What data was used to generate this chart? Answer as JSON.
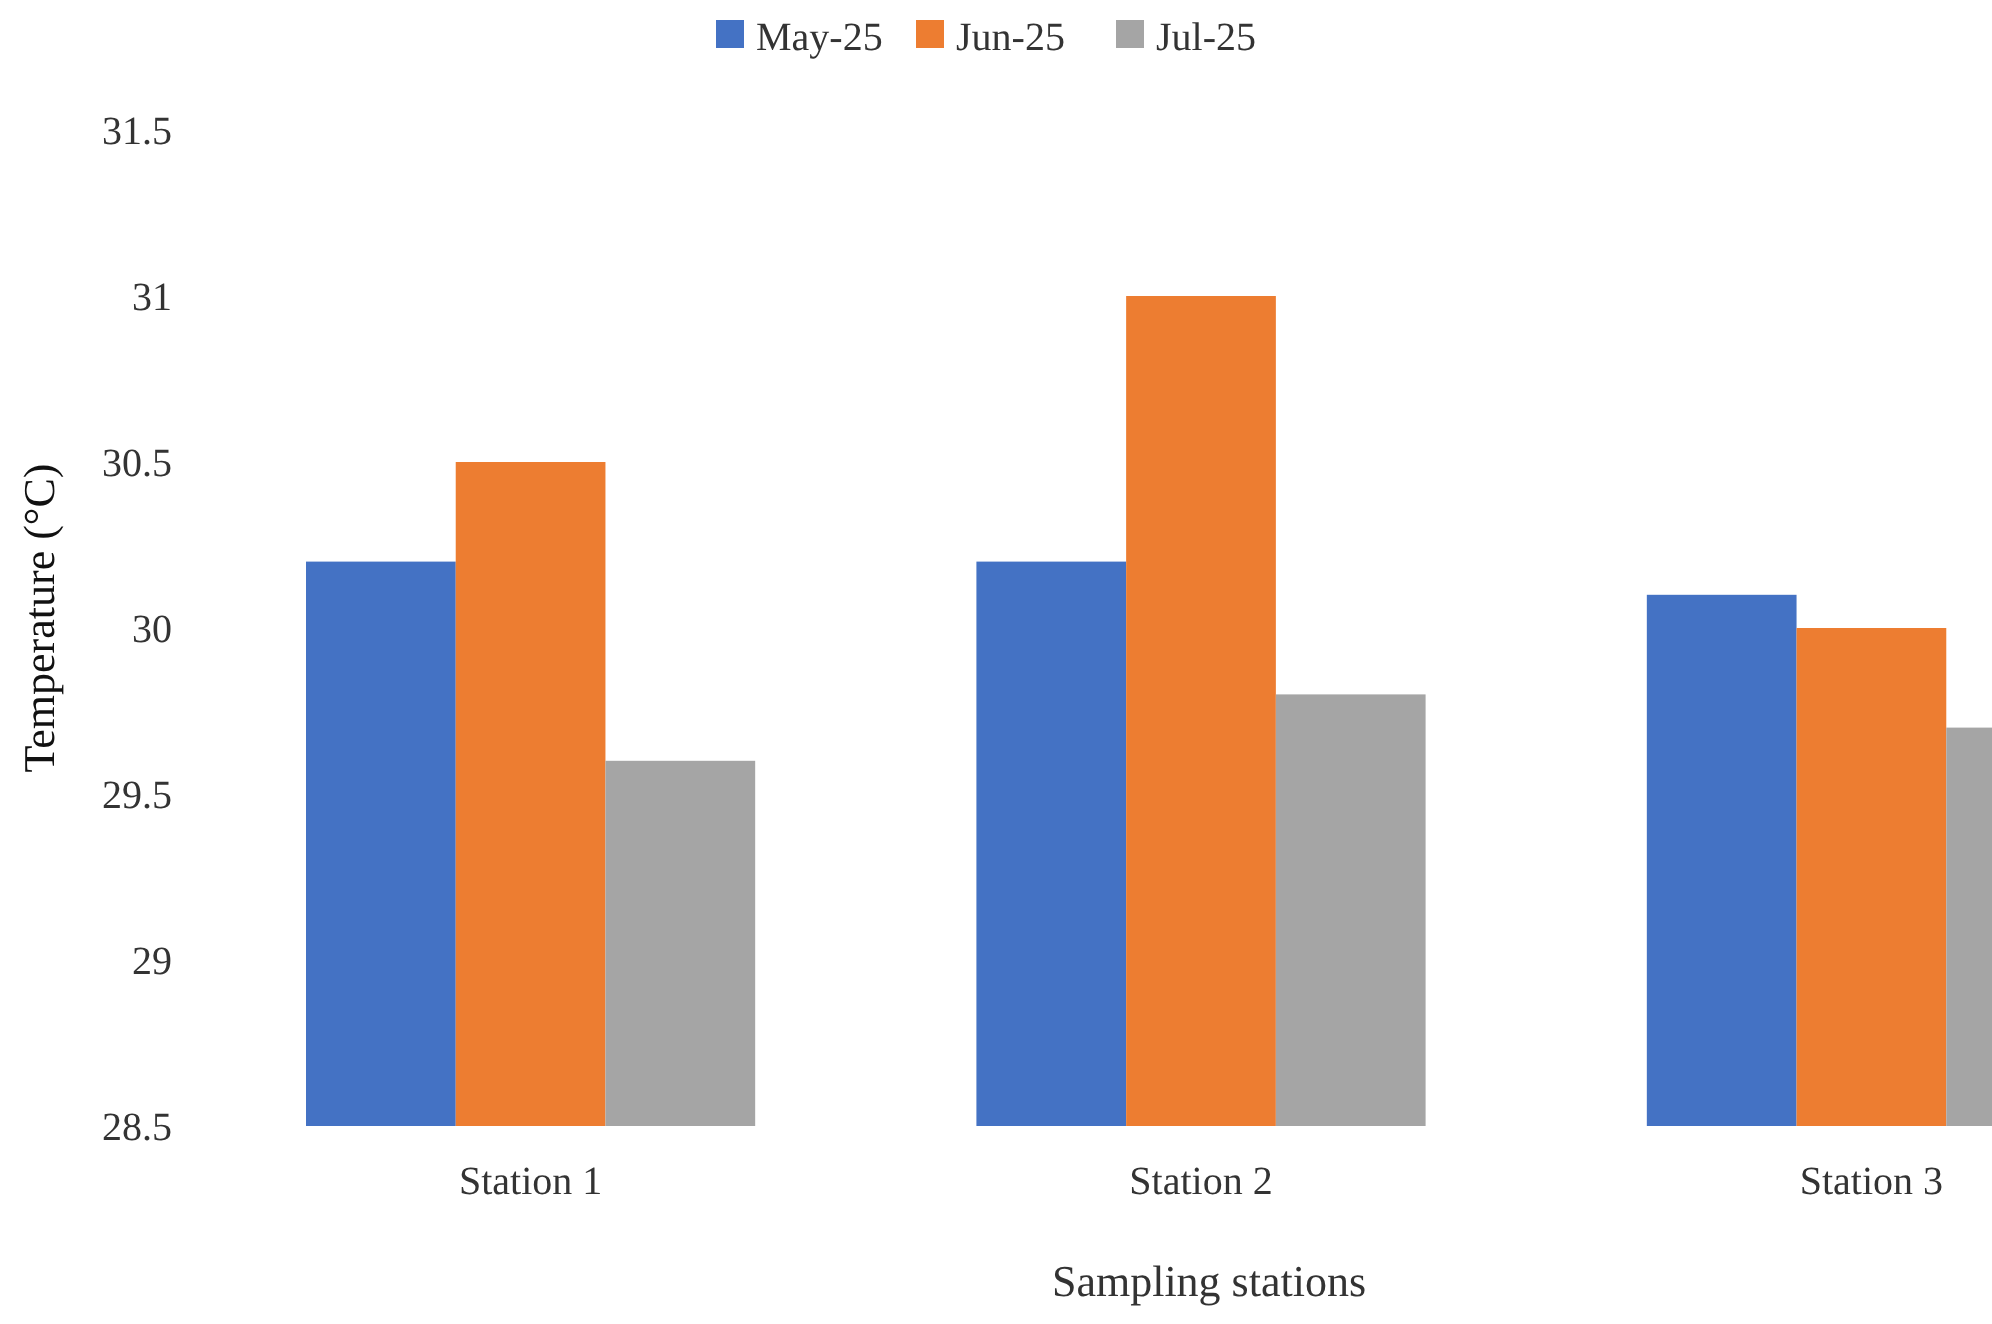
{
  "chart_data": {
    "type": "bar",
    "xlabel": "Sampling stations",
    "ylabel": "Temperature (°C)",
    "categories": [
      "Station 1",
      "Station 2",
      "Station 3"
    ],
    "series": [
      {
        "name": "May-25",
        "color": "#4472c4",
        "values": [
          30.2,
          30.2,
          30.1
        ]
      },
      {
        "name": "Jun-25",
        "color": "#ed7d31",
        "values": [
          30.5,
          31.0,
          30.0
        ]
      },
      {
        "name": "Jul-25",
        "color": "#a5a5a5",
        "values": [
          29.6,
          29.8,
          29.7
        ]
      }
    ],
    "ylim": [
      28.5,
      31.5
    ],
    "yticks": [
      28.5,
      29,
      29.5,
      30,
      30.5,
      31,
      31.5
    ],
    "legend": "top"
  }
}
